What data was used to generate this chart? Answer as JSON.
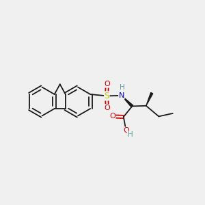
{
  "background_color": "#f0f0f0",
  "bond_color": "#1a1a1a",
  "atom_colors": {
    "S": "#cccc00",
    "N": "#0000cc",
    "O": "#cc0000",
    "H": "#5f9ea0",
    "C": "#1a1a1a"
  },
  "figsize": [
    3.0,
    3.0
  ],
  "dpi": 100
}
